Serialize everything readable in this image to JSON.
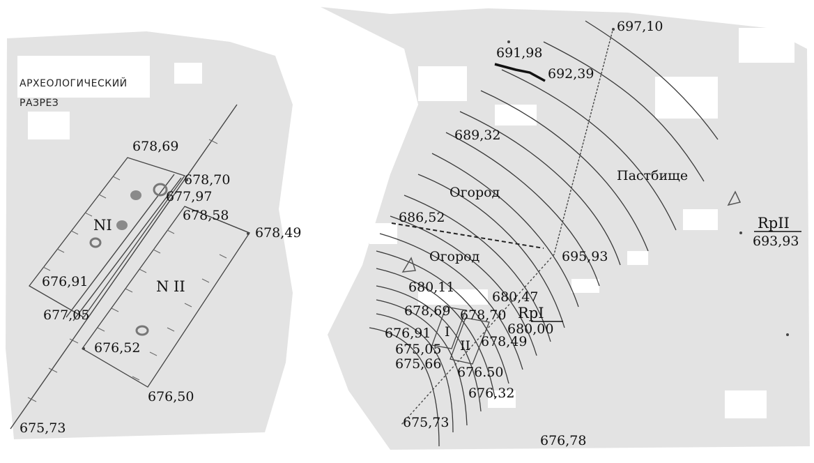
{
  "section_title": [
    "АРХЕОЛОГИЧЕСКИЙ",
    "РАЗРЕЗ"
  ],
  "colors": {
    "background": "#ffffff",
    "terrain_shading": "#e3e3e3",
    "line": "#444444",
    "text": "#111111"
  },
  "left_panel": {
    "trench_labels": {
      "n1": "NI",
      "n2": "N II"
    },
    "elevations": [
      "678,69",
      "678,70",
      "677,97",
      "678,58",
      "678,49",
      "676,91",
      "677,05",
      "676,52",
      "676,50",
      "675,73"
    ]
  },
  "right_panel": {
    "areas": {
      "pasture": "Пастбище",
      "garden_upper": "Огород",
      "garden_lower": "Огород"
    },
    "trench_labels": {
      "t1": "I",
      "t2": "II"
    },
    "elevations": [
      "697,10",
      "691,98",
      "692,39",
      "689,32",
      "686,52",
      "695,93",
      "680,11",
      "680,47",
      "678,69",
      "678,70",
      "676,91",
      "678,49",
      "675,05",
      "675,66",
      "676.50",
      "676,32",
      "675,73",
      "676,78"
    ],
    "benchmarks": [
      {
        "name": "RpI",
        "value": "680,00"
      },
      {
        "name": "RpII",
        "value": "693,93"
      }
    ]
  }
}
